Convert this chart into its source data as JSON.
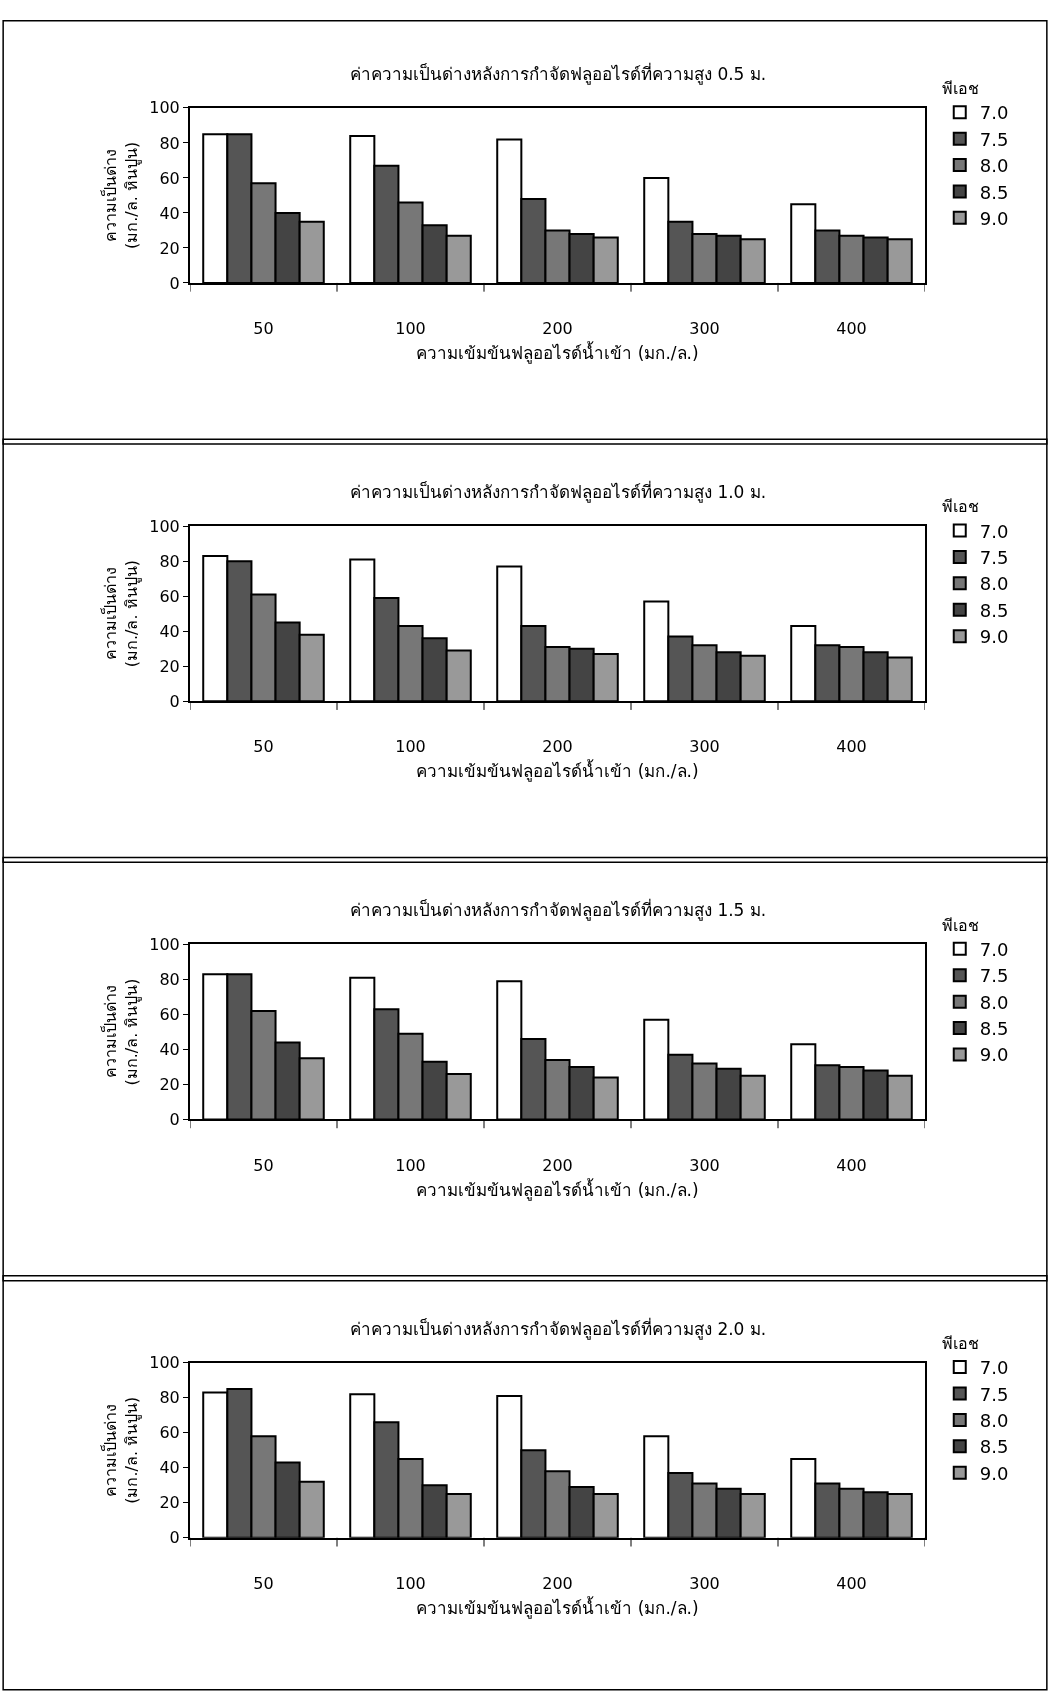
{
  "chart_data": [
    {
      "type": "bar",
      "title": "ค่าความเป็นด่างหลังการกำจัดฟลูออไรด์ที่ความสูง 0.5 ม.",
      "xlabel": "ความเข้มข้นฟลูออไรด์น้ำเข้า (มก./ล.)",
      "ylabel": "ความเป็นด่าง\n(มก./ล. หินปูน)",
      "legend_title": "พีเอช",
      "legend": "right",
      "grid": false,
      "ylim": [
        0,
        100
      ],
      "yticks": [
        0,
        20,
        40,
        60,
        80,
        100
      ],
      "categories": [
        "50",
        "100",
        "200",
        "300",
        "400"
      ],
      "series": [
        {
          "name": "7.0",
          "color": "#ffffff",
          "values": [
            85,
            84,
            82,
            60,
            45
          ]
        },
        {
          "name": "7.5",
          "color": "#555555",
          "values": [
            85,
            67,
            48,
            35,
            30
          ]
        },
        {
          "name": "8.0",
          "color": "#777777",
          "values": [
            57,
            46,
            30,
            28,
            27
          ]
        },
        {
          "name": "8.5",
          "color": "#444444",
          "values": [
            40,
            33,
            28,
            27,
            26
          ]
        },
        {
          "name": "9.0",
          "color": "#999999",
          "values": [
            35,
            27,
            26,
            25,
            25
          ]
        }
      ]
    },
    {
      "type": "bar",
      "title": "ค่าความเป็นด่างหลังการกำจัดฟลูออไรด์ที่ความสูง 1.0 ม.",
      "xlabel": "ความเข้มข้นฟลูออไรด์น้ำเข้า (มก./ล.)",
      "ylabel": "ความเป็นด่าง\n(มก./ล. หินปูน)",
      "legend_title": "พีเอช",
      "legend": "right",
      "grid": false,
      "ylim": [
        0,
        100
      ],
      "yticks": [
        0,
        20,
        40,
        60,
        80,
        100
      ],
      "categories": [
        "50",
        "100",
        "200",
        "300",
        "400"
      ],
      "series": [
        {
          "name": "7.0",
          "color": "#ffffff",
          "values": [
            83,
            81,
            77,
            57,
            43
          ]
        },
        {
          "name": "7.5",
          "color": "#555555",
          "values": [
            80,
            59,
            43,
            37,
            32
          ]
        },
        {
          "name": "8.0",
          "color": "#777777",
          "values": [
            61,
            43,
            31,
            32,
            31
          ]
        },
        {
          "name": "8.5",
          "color": "#444444",
          "values": [
            45,
            36,
            30,
            28,
            28
          ]
        },
        {
          "name": "9.0",
          "color": "#999999",
          "values": [
            38,
            29,
            27,
            26,
            25
          ]
        }
      ]
    },
    {
      "type": "bar",
      "title": "ค่าความเป็นด่างหลังการกำจัดฟลูออไรด์ที่ความสูง 1.5 ม.",
      "xlabel": "ความเข้มข้นฟลูออไรด์น้ำเข้า (มก./ล.)",
      "ylabel": "ความเป็นด่าง\n(มก./ล. หินปูน)",
      "legend_title": "พีเอช",
      "legend": "right",
      "grid": false,
      "ylim": [
        0,
        100
      ],
      "yticks": [
        0,
        20,
        40,
        60,
        80,
        100
      ],
      "categories": [
        "50",
        "100",
        "200",
        "300",
        "400"
      ],
      "series": [
        {
          "name": "7.0",
          "color": "#ffffff",
          "values": [
            83,
            81,
            79,
            57,
            43
          ]
        },
        {
          "name": "7.5",
          "color": "#555555",
          "values": [
            83,
            63,
            46,
            37,
            31
          ]
        },
        {
          "name": "8.0",
          "color": "#777777",
          "values": [
            62,
            49,
            34,
            32,
            30
          ]
        },
        {
          "name": "8.5",
          "color": "#444444",
          "values": [
            44,
            33,
            30,
            29,
            28
          ]
        },
        {
          "name": "9.0",
          "color": "#999999",
          "values": [
            35,
            26,
            24,
            25,
            25
          ]
        }
      ]
    },
    {
      "type": "bar",
      "title": "ค่าความเป็นด่างหลังการกำจัดฟลูออไรด์ที่ความสูง 2.0 ม.",
      "xlabel": "ความเข้มข้นฟลูออไรด์น้ำเข้า (มก./ล.)",
      "ylabel": "ความเป็นด่าง\n(มก./ล. หินปูน)",
      "legend_title": "พีเอช",
      "legend": "right",
      "grid": false,
      "ylim": [
        0,
        100
      ],
      "yticks": [
        0,
        20,
        40,
        60,
        80,
        100
      ],
      "categories": [
        "50",
        "100",
        "200",
        "300",
        "400"
      ],
      "series": [
        {
          "name": "7.0",
          "color": "#ffffff",
          "values": [
            83,
            82,
            81,
            58,
            45
          ]
        },
        {
          "name": "7.5",
          "color": "#555555",
          "values": [
            85,
            66,
            50,
            37,
            31
          ]
        },
        {
          "name": "8.0",
          "color": "#777777",
          "values": [
            58,
            45,
            38,
            31,
            28
          ]
        },
        {
          "name": "8.5",
          "color": "#444444",
          "values": [
            43,
            30,
            29,
            28,
            26
          ]
        },
        {
          "name": "9.0",
          "color": "#999999",
          "values": [
            32,
            25,
            25,
            25,
            25
          ]
        }
      ]
    }
  ]
}
